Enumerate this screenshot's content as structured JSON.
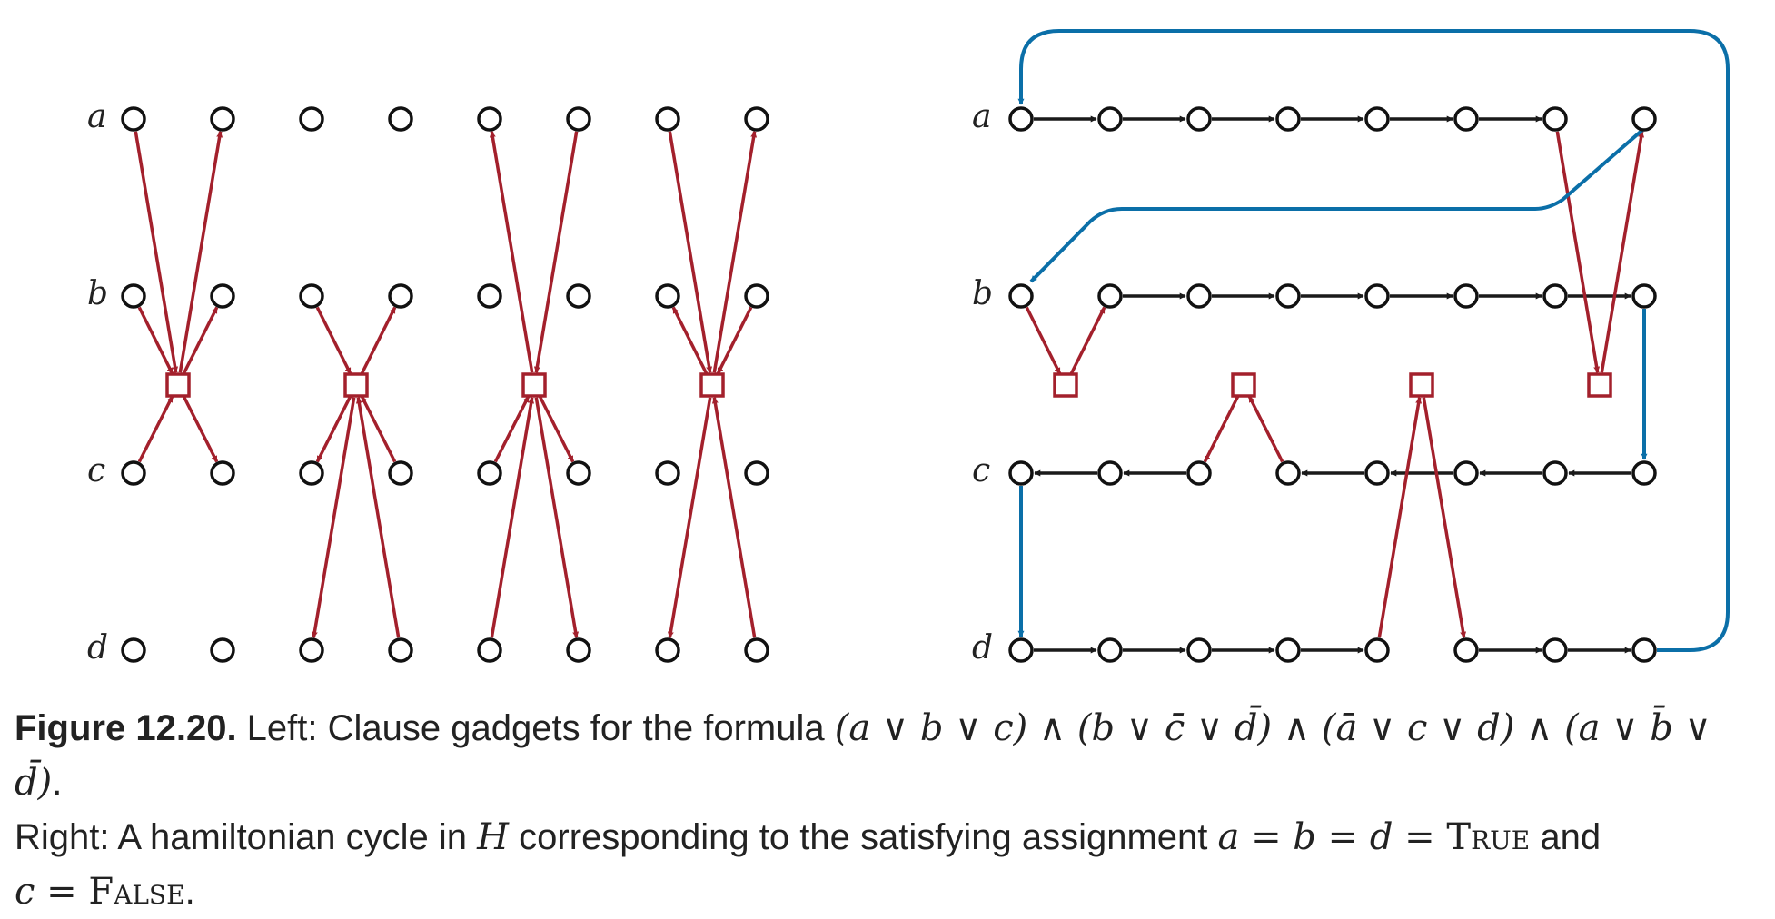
{
  "row_labels": [
    "a",
    "b",
    "c",
    "d"
  ],
  "colors": {
    "node_stroke": "#111111",
    "path_edge": "#1a1a1a",
    "clause_edge": "#a3202c",
    "cycle_edge": "#0b6fa8"
  },
  "caption": {
    "figure_label": "Figure 12.20.",
    "text_1": " Left: Clause gadgets for the formula ",
    "formula": "(a ∨ b ∨ c) ∧ (b ∨ c̄ ∨ d̄) ∧ (ā ∨ c ∨ d) ∧ (a ∨ b̄ ∨ d̄)",
    "text_2": ".",
    "text_3": "Right: A hamiltonian cycle in ",
    "graph_name": "H",
    "text_4": " corresponding to the satisfying assignment ",
    "assignment": "a = b = d = ",
    "true_word": "True",
    "text_5": " and",
    "assignment_2": "c = ",
    "false_word": "False",
    "text_6": "."
  }
}
